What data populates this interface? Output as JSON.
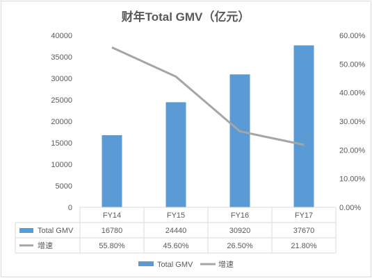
{
  "chart_data": {
    "type": "bar",
    "title": "财年Total GMV（亿元）",
    "categories": [
      "FY14",
      "FY15",
      "FY16",
      "FY17"
    ],
    "series": [
      {
        "name": "Total GMV",
        "type": "bar",
        "axis": "left",
        "values": [
          16780,
          24440,
          30920,
          37670
        ],
        "value_labels": [
          "16780",
          "24440",
          "30920",
          "37670"
        ],
        "color": "#5b9bd5"
      },
      {
        "name": "增速",
        "type": "line",
        "axis": "right",
        "values": [
          55.8,
          45.6,
          26.5,
          21.8
        ],
        "value_labels": [
          "55.80%",
          "45.60%",
          "26.50%",
          "21.80%"
        ],
        "color": "#a5a5a5"
      }
    ],
    "y_left": {
      "min": 0,
      "max": 40000,
      "ticks": [
        "0",
        "5000",
        "10000",
        "15000",
        "20000",
        "25000",
        "30000",
        "35000",
        "40000"
      ]
    },
    "y_right": {
      "min": 0,
      "max": 60,
      "ticks": [
        "0.00%",
        "10.00%",
        "20.00%",
        "30.00%",
        "40.00%",
        "50.00%",
        "60.00%"
      ]
    },
    "data_table": true,
    "legend_position": "bottom",
    "grid": false
  }
}
